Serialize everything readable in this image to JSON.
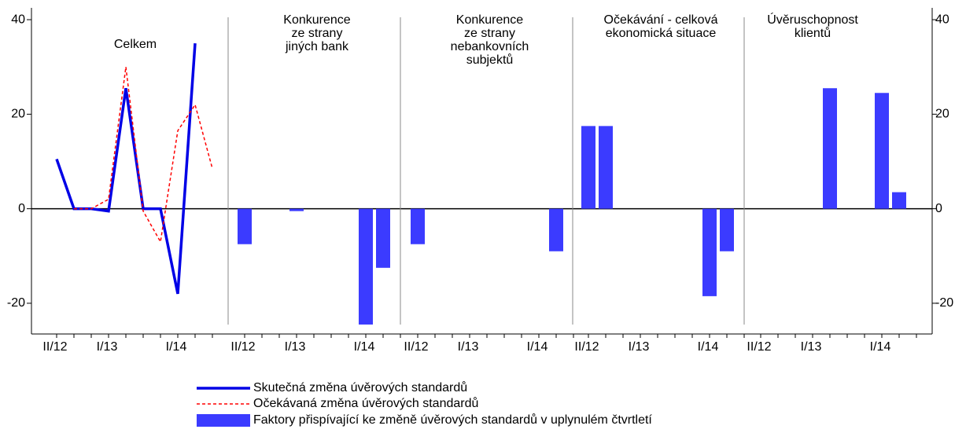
{
  "chart_data": {
    "type": "combo",
    "categories": [
      "II/12",
      null,
      null,
      "I/13",
      null,
      null,
      null,
      "I/14",
      null,
      null
    ],
    "ylim": [
      -26.5,
      42.5
    ],
    "yticks": [
      -20,
      0,
      20,
      40
    ],
    "y2lim": [
      -26.5,
      42.5
    ],
    "y2ticks": [
      -20,
      0,
      20,
      40
    ],
    "bar_series": {
      "name": "Faktory přispívající ke změně úvěrových standardů v uplynulém čtvrtletí",
      "color": "#3b3bff"
    },
    "panels": [
      {
        "title": [
          "Celkem"
        ],
        "series": [
          {
            "name": "Skutečná změna úvěrových standardů",
            "color": "#0000e6",
            "values": [
              10.5,
              0,
              0,
              -0.5,
              25.5,
              0,
              0,
              -18,
              35,
              null
            ]
          },
          {
            "name": "Očekávaná změna úvěrových standardů",
            "color": "#ff0000",
            "dashed": true,
            "values": [
              null,
              0,
              0,
              2,
              30,
              -0.5,
              -7,
              16.5,
              22,
              8.5
            ]
          }
        ]
      },
      {
        "title": [
          "Konkurence",
          "ze strany",
          "jiných bank"
        ],
        "values": [
          -7.5,
          0,
          0,
          -0.5,
          0,
          0,
          0,
          -24.5,
          -12.5,
          0
        ]
      },
      {
        "title": [
          "Konkurence",
          "ze strany",
          "nebankovních",
          "subjektů"
        ],
        "values": [
          -7.5,
          0,
          0,
          0,
          0,
          0,
          0,
          0,
          -9,
          0
        ]
      },
      {
        "title": [
          "Očekávání - celková",
          "ekonomická situace"
        ],
        "values": [
          17.5,
          17.5,
          0,
          0,
          0,
          0,
          0,
          -18.5,
          -9,
          0
        ]
      },
      {
        "title": [
          "Úvěruschopnost",
          "klientů"
        ],
        "values": [
          0,
          0,
          0,
          0,
          25.5,
          0,
          0,
          24.5,
          3.5,
          0
        ]
      }
    ]
  }
}
